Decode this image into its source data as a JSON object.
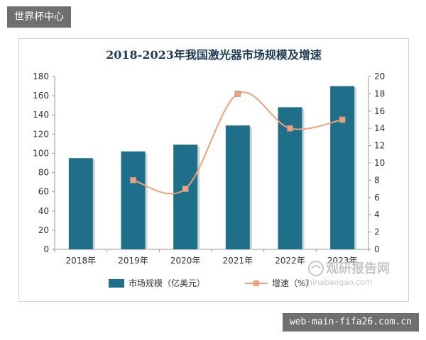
{
  "header": {
    "badge": "世界杯中心"
  },
  "footer": {
    "url": "web-main-fifa26.com.cn"
  },
  "watermark": {
    "name": "观研报告网",
    "domain": "chinabaogao.com"
  },
  "colors": {
    "bar": "#1f6f8b",
    "line": "#f0a17c",
    "point": "#f0a17c"
  },
  "chart_data": {
    "type": "bar",
    "title": "2018-2023年我国激光器市场规模及增速",
    "categories": [
      "2018年",
      "2019年",
      "2020年",
      "2021年",
      "2022年",
      "2023年"
    ],
    "ylim": [
      0,
      180
    ],
    "yticks": [
      0,
      20,
      40,
      60,
      80,
      100,
      120,
      140,
      160,
      180
    ],
    "y2lim": [
      0,
      20
    ],
    "y2ticks": [
      0,
      2,
      4,
      6,
      8,
      10,
      12,
      14,
      16,
      18,
      20
    ],
    "legend_position": "bottom",
    "series": [
      {
        "name": "市场规模（亿美元）",
        "kind": "bar",
        "axis": "left",
        "values": [
          95,
          102,
          109,
          129,
          148,
          170
        ]
      },
      {
        "name": "增速（%）",
        "kind": "line",
        "axis": "right",
        "values": [
          null,
          8,
          7,
          18,
          14,
          15
        ]
      }
    ]
  }
}
